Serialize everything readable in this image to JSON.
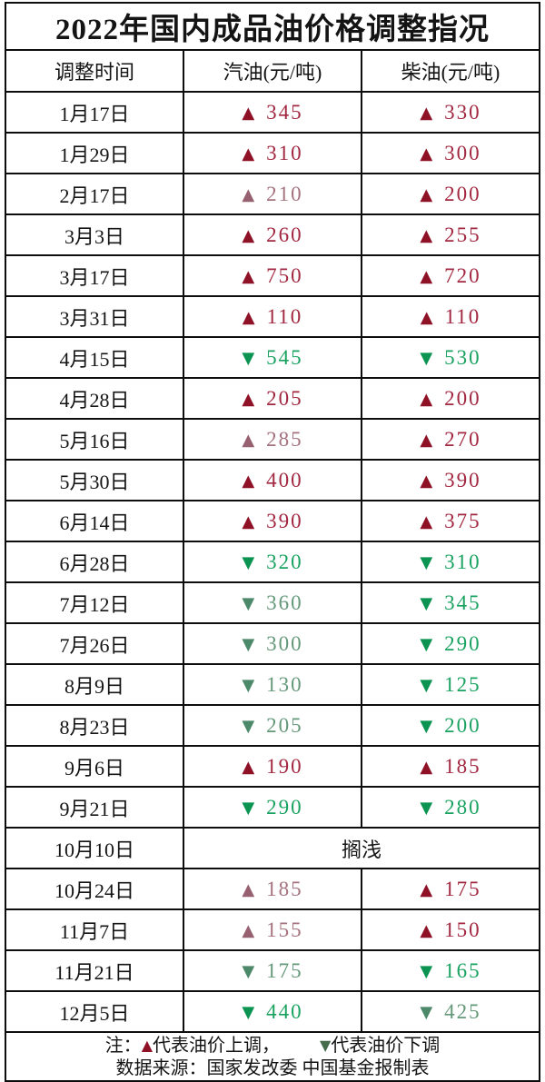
{
  "table": {
    "title": "2022年国内成品油价格调整指况",
    "columns": [
      "调整时间",
      "汽油(元/吨)",
      "柴油(元/吨)"
    ],
    "rows": [
      {
        "date": "1月17日",
        "gasoline": {
          "dir": "up",
          "value": "345",
          "tone": "strong"
        },
        "diesel": {
          "dir": "up",
          "value": "330",
          "tone": "strong"
        }
      },
      {
        "date": "1月29日",
        "gasoline": {
          "dir": "up",
          "value": "310",
          "tone": "strong"
        },
        "diesel": {
          "dir": "up",
          "value": "300",
          "tone": "strong"
        }
      },
      {
        "date": "2月17日",
        "gasoline": {
          "dir": "up",
          "value": "210",
          "tone": "muted"
        },
        "diesel": {
          "dir": "up",
          "value": "200",
          "tone": "strong"
        }
      },
      {
        "date": "3月3日",
        "gasoline": {
          "dir": "up",
          "value": "260",
          "tone": "strong"
        },
        "diesel": {
          "dir": "up",
          "value": "255",
          "tone": "strong"
        }
      },
      {
        "date": "3月17日",
        "gasoline": {
          "dir": "up",
          "value": "750",
          "tone": "strong"
        },
        "diesel": {
          "dir": "up",
          "value": "720",
          "tone": "strong"
        }
      },
      {
        "date": "3月31日",
        "gasoline": {
          "dir": "up",
          "value": "110",
          "tone": "strong"
        },
        "diesel": {
          "dir": "up",
          "value": "110",
          "tone": "strong"
        }
      },
      {
        "date": "4月15日",
        "gasoline": {
          "dir": "down",
          "value": "545",
          "tone": "strong"
        },
        "diesel": {
          "dir": "down",
          "value": "530",
          "tone": "strong"
        }
      },
      {
        "date": "4月28日",
        "gasoline": {
          "dir": "up",
          "value": "205",
          "tone": "strong"
        },
        "diesel": {
          "dir": "up",
          "value": "200",
          "tone": "strong"
        }
      },
      {
        "date": "5月16日",
        "gasoline": {
          "dir": "up",
          "value": "285",
          "tone": "muted"
        },
        "diesel": {
          "dir": "up",
          "value": "270",
          "tone": "strong"
        }
      },
      {
        "date": "5月30日",
        "gasoline": {
          "dir": "up",
          "value": "400",
          "tone": "strong"
        },
        "diesel": {
          "dir": "up",
          "value": "390",
          "tone": "strong"
        }
      },
      {
        "date": "6月14日",
        "gasoline": {
          "dir": "up",
          "value": "390",
          "tone": "strong"
        },
        "diesel": {
          "dir": "up",
          "value": "375",
          "tone": "strong"
        }
      },
      {
        "date": "6月28日",
        "gasoline": {
          "dir": "down",
          "value": "320",
          "tone": "strong"
        },
        "diesel": {
          "dir": "down",
          "value": "310",
          "tone": "strong"
        }
      },
      {
        "date": "7月12日",
        "gasoline": {
          "dir": "down",
          "value": "360",
          "tone": "muted"
        },
        "diesel": {
          "dir": "down",
          "value": "345",
          "tone": "strong"
        }
      },
      {
        "date": "7月26日",
        "gasoline": {
          "dir": "down",
          "value": "300",
          "tone": "muted"
        },
        "diesel": {
          "dir": "down",
          "value": "290",
          "tone": "strong"
        }
      },
      {
        "date": "8月9日",
        "gasoline": {
          "dir": "down",
          "value": "130",
          "tone": "muted"
        },
        "diesel": {
          "dir": "down",
          "value": "125",
          "tone": "strong"
        }
      },
      {
        "date": "8月23日",
        "gasoline": {
          "dir": "down",
          "value": "205",
          "tone": "muted"
        },
        "diesel": {
          "dir": "down",
          "value": "200",
          "tone": "strong"
        }
      },
      {
        "date": "9月6日",
        "gasoline": {
          "dir": "up",
          "value": "190",
          "tone": "strong"
        },
        "diesel": {
          "dir": "up",
          "value": "185",
          "tone": "strong"
        }
      },
      {
        "date": "9月21日",
        "gasoline": {
          "dir": "down",
          "value": "290",
          "tone": "strong"
        },
        "diesel": {
          "dir": "down",
          "value": "280",
          "tone": "strong"
        }
      },
      {
        "date": "10月10日",
        "merged": "搁浅"
      },
      {
        "date": "10月24日",
        "gasoline": {
          "dir": "up",
          "value": "185",
          "tone": "muted"
        },
        "diesel": {
          "dir": "up",
          "value": "175",
          "tone": "strong"
        }
      },
      {
        "date": "11月7日",
        "gasoline": {
          "dir": "up",
          "value": "155",
          "tone": "muted"
        },
        "diesel": {
          "dir": "up",
          "value": "150",
          "tone": "strong"
        }
      },
      {
        "date": "11月21日",
        "gasoline": {
          "dir": "down",
          "value": "175",
          "tone": "muted"
        },
        "diesel": {
          "dir": "down",
          "value": "165",
          "tone": "strong"
        }
      },
      {
        "date": "12月5日",
        "gasoline": {
          "dir": "down",
          "value": "440",
          "tone": "strong"
        },
        "diesel": {
          "dir": "down",
          "value": "425",
          "tone": "muted"
        }
      }
    ]
  },
  "icons": {
    "up": "▲",
    "down": "▼"
  },
  "colors": {
    "up_strong": {
      "tri": "#8e1126",
      "text": "#a22740"
    },
    "up_muted": {
      "tri": "#966070",
      "text": "#a4717d"
    },
    "down_strong": {
      "tri": "#0b9451",
      "text": "#1aa260"
    },
    "down_muted": {
      "tri": "#4c886a",
      "text": "#649879"
    },
    "note_up": "#8e1126",
    "note_down": "#446b4a"
  },
  "note": {
    "prefix": "注：",
    "up_text": "代表油价上调，",
    "down_text": "代表油价下调",
    "source": "数据来源：国家发改委  中国基金报制表"
  },
  "chart_data": {
    "type": "table",
    "title": "2022年国内成品油价格调整指况",
    "columns": [
      "调整时间",
      "汽油(元/吨)",
      "柴油(元/吨)"
    ],
    "rows": [
      [
        "1月17日",
        345,
        330
      ],
      [
        "1月29日",
        310,
        300
      ],
      [
        "2月17日",
        210,
        200
      ],
      [
        "3月3日",
        260,
        255
      ],
      [
        "3月17日",
        750,
        720
      ],
      [
        "3月31日",
        110,
        110
      ],
      [
        "4月15日",
        -545,
        -530
      ],
      [
        "4月28日",
        205,
        200
      ],
      [
        "5月16日",
        285,
        270
      ],
      [
        "5月30日",
        400,
        390
      ],
      [
        "6月14日",
        390,
        375
      ],
      [
        "6月28日",
        -320,
        -310
      ],
      [
        "7月12日",
        -360,
        -345
      ],
      [
        "7月26日",
        -300,
        -290
      ],
      [
        "8月9日",
        -130,
        -125
      ],
      [
        "8月23日",
        -205,
        -200
      ],
      [
        "9月6日",
        190,
        185
      ],
      [
        "9月21日",
        -290,
        -280
      ],
      [
        "10月10日",
        "搁浅",
        "搁浅"
      ],
      [
        "10月24日",
        185,
        175
      ],
      [
        "11月7日",
        155,
        150
      ],
      [
        "11月21日",
        -175,
        -165
      ],
      [
        "12月5日",
        -440,
        -425
      ]
    ],
    "notes": "正值=上调(▲红), 负值=下调(▼绿); 注：▲代表油价上调，▼代表油价下调; 数据来源：国家发改委 中国基金报制表"
  }
}
